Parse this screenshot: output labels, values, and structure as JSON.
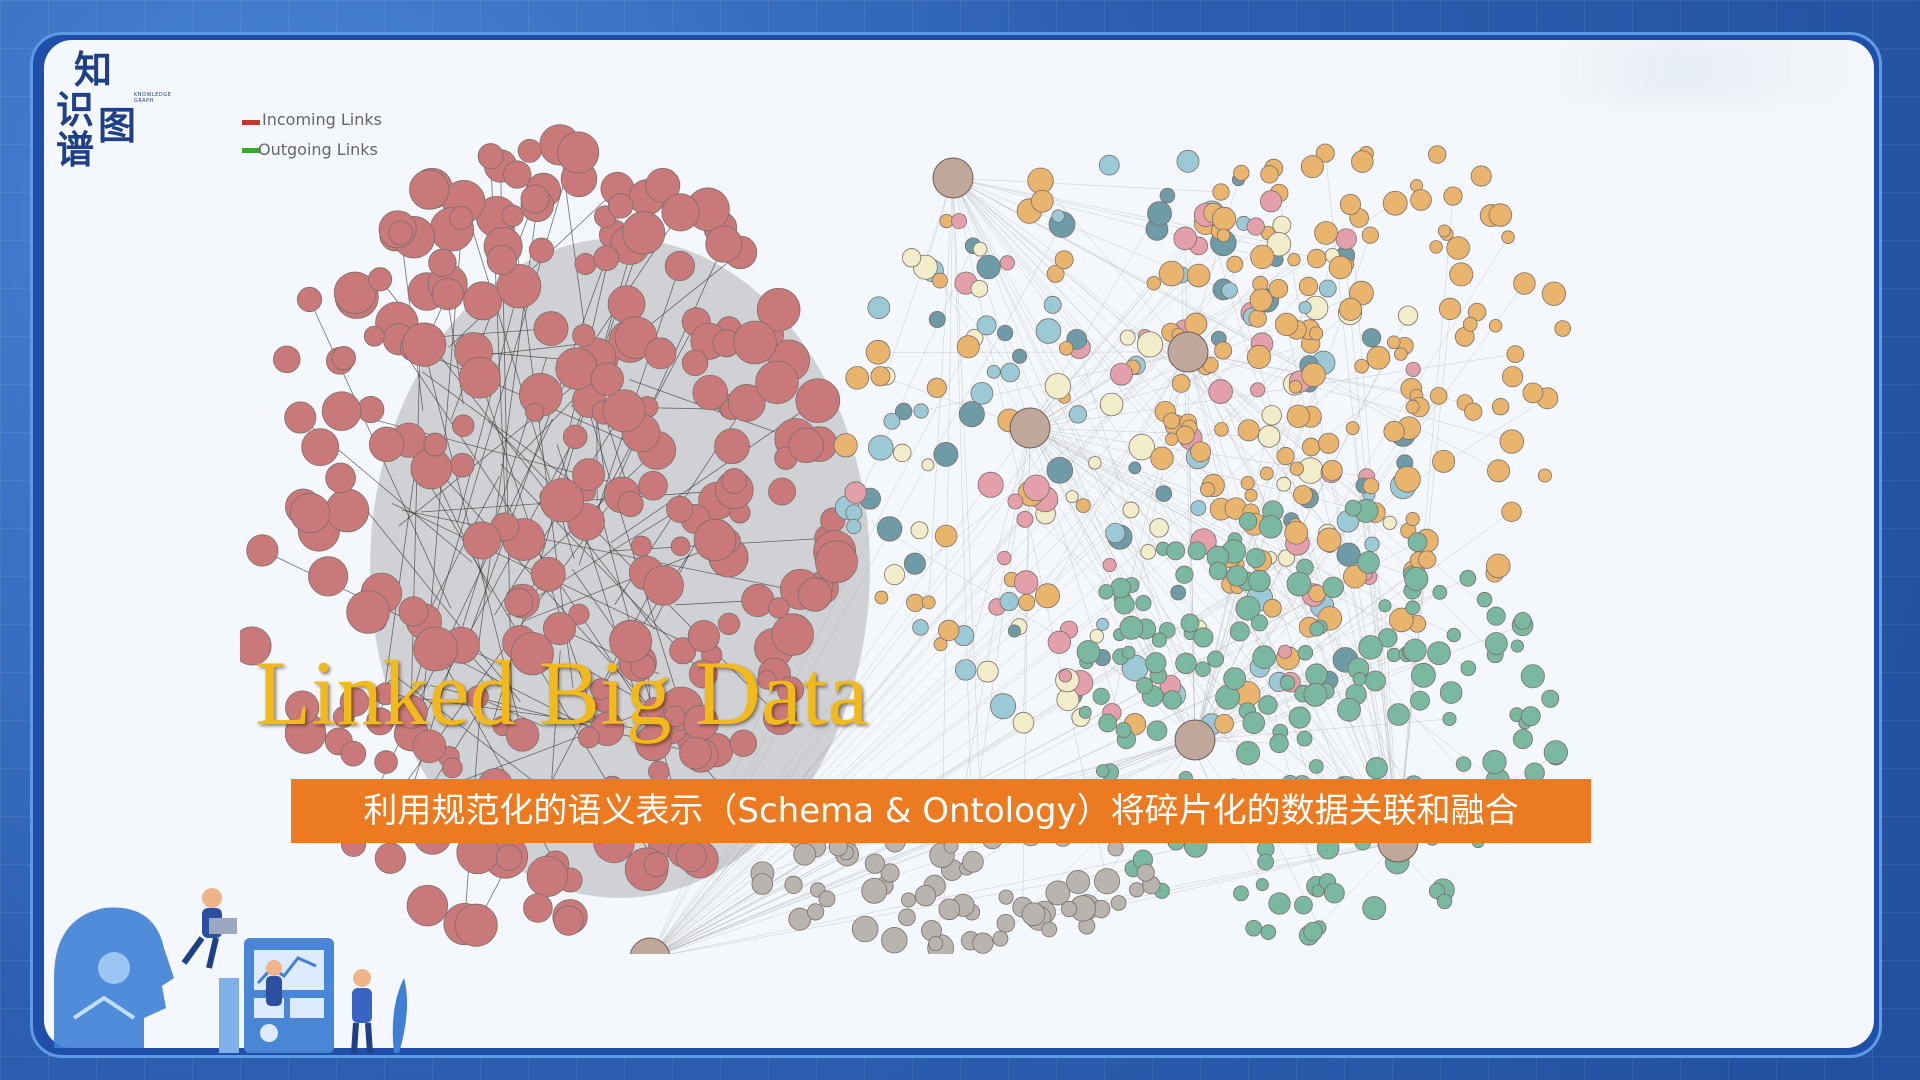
{
  "logo": {
    "chars": [
      "知",
      "识",
      "图",
      "谱"
    ],
    "subtitle": "KNOWLEDGE GRAPH"
  },
  "legend": [
    {
      "label": "Incoming Links",
      "color": "#c0392b"
    },
    {
      "label": "Outgoing Links",
      "color": "#3fa535"
    }
  ],
  "title": "Linked Big Data",
  "caption": "利用规范化的语义表示（Schema & Ontology）将碎片化的数据关联和融合",
  "colors": {
    "frame": "#1f4fa8",
    "panel": "#f4f7fb",
    "title": "#f2b91a",
    "caption_bg": "#ec7a21",
    "cluster_red": "#c9797a",
    "cluster_cream": "#f1ecc9",
    "cluster_orange": "#e9b56e",
    "cluster_teal": "#7ab8a1",
    "cluster_grey": "#b8b4b0"
  },
  "illustration": {
    "icons": [
      "robot-head-icon",
      "person-laptop-icon",
      "dashboard-screen-icon",
      "person-standing-icon",
      "plant-icon"
    ]
  }
}
